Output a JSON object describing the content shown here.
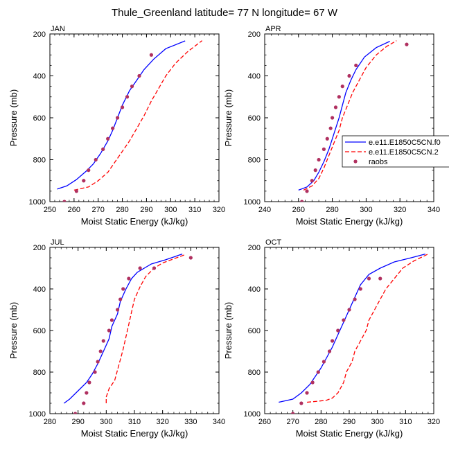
{
  "figure": {
    "title": "Thule_Greenland  latitude= 77 N longitude= 67 W"
  },
  "legend": {
    "placement": "right of APR panel (clipped at image edge)",
    "entries": [
      {
        "label": "e.e11.E1850C5CN.f0",
        "style": "solid",
        "color": "#0000ff"
      },
      {
        "label": "e.e11.E1850C5CN.2",
        "style": "dashed",
        "color": "#ff0000"
      },
      {
        "label": "raobs",
        "style": "marker",
        "color": "#b03060"
      }
    ]
  },
  "chart_data": [
    {
      "type": "line",
      "panel": "JAN",
      "xlabel": "Moist Static Energy (kJ/kg)",
      "ylabel": "Pressure (mb)",
      "xlim": [
        250,
        320
      ],
      "xticks": [
        250,
        260,
        270,
        280,
        290,
        300,
        310,
        320
      ],
      "ylim": [
        1000,
        200
      ],
      "yticks": [
        200,
        400,
        600,
        800,
        1000
      ],
      "series": [
        {
          "name": "e.e11.E1850C5CN.f0",
          "style": "solid",
          "color": "#0000ff",
          "points": [
            [
              253,
              940
            ],
            [
              257,
              925
            ],
            [
              261,
              895
            ],
            [
              265,
              855
            ],
            [
              268,
              820
            ],
            [
              271,
              770
            ],
            [
              274,
              710
            ],
            [
              276,
              660
            ],
            [
              278,
              600
            ],
            [
              280,
              540
            ],
            [
              283,
              470
            ],
            [
              286,
              420
            ],
            [
              289,
              370
            ],
            [
              293,
              320
            ],
            [
              298,
              270
            ],
            [
              306,
              233
            ]
          ]
        },
        {
          "name": "e.e11.E1850C5CN.2",
          "style": "dashed",
          "color": "#ff0000",
          "points": [
            [
              260,
              945
            ],
            [
              266,
              930
            ],
            [
              270,
              900
            ],
            [
              274,
              860
            ],
            [
              277,
              810
            ],
            [
              280,
              760
            ],
            [
              283,
              710
            ],
            [
              286,
              650
            ],
            [
              289,
              590
            ],
            [
              292,
              520
            ],
            [
              295,
              460
            ],
            [
              298,
              400
            ],
            [
              302,
              340
            ],
            [
              307,
              285
            ],
            [
              313,
              232
            ]
          ]
        },
        {
          "name": "raobs",
          "style": "marker",
          "color": "#b03060",
          "points": [
            [
              256,
              1000
            ],
            [
              261,
              950
            ],
            [
              264,
              900
            ],
            [
              266,
              850
            ],
            [
              269,
              800
            ],
            [
              272,
              750
            ],
            [
              274,
              700
            ],
            [
              276,
              650
            ],
            [
              278,
              600
            ],
            [
              280,
              550
            ],
            [
              282,
              500
            ],
            [
              284,
              450
            ],
            [
              287,
              400
            ],
            [
              292,
              300
            ]
          ]
        }
      ]
    },
    {
      "type": "line",
      "panel": "APR",
      "xlabel": "Moist Static Energy (kJ/kg)",
      "ylabel": "Pressure (mb)",
      "xlim": [
        240,
        340
      ],
      "xticks": [
        240,
        260,
        280,
        300,
        320,
        340
      ],
      "ylim": [
        1000,
        200
      ],
      "yticks": [
        200,
        400,
        600,
        800,
        1000
      ],
      "series": [
        {
          "name": "e.e11.E1850C5CN.f0",
          "style": "solid",
          "color": "#0000ff",
          "points": [
            [
              260,
              945
            ],
            [
              265,
              930
            ],
            [
              269,
              900
            ],
            [
              272,
              860
            ],
            [
              275,
              810
            ],
            [
              278,
              750
            ],
            [
              280,
              700
            ],
            [
              282,
              650
            ],
            [
              284,
              600
            ],
            [
              286,
              540
            ],
            [
              288,
              480
            ],
            [
              291,
              420
            ],
            [
              294,
              370
            ],
            [
              299,
              310
            ],
            [
              306,
              265
            ],
            [
              314,
              235
            ]
          ]
        },
        {
          "name": "e.e11.E1850C5CN.2",
          "style": "dashed",
          "color": "#ff0000",
          "points": [
            [
              263,
              945
            ],
            [
              268,
              925
            ],
            [
              272,
              890
            ],
            [
              275,
              840
            ],
            [
              278,
              780
            ],
            [
              281,
              720
            ],
            [
              284,
              660
            ],
            [
              286,
              600
            ],
            [
              289,
              540
            ],
            [
              292,
              480
            ],
            [
              296,
              420
            ],
            [
              300,
              360
            ],
            [
              306,
              300
            ],
            [
              312,
              260
            ],
            [
              318,
              232
            ]
          ]
        },
        {
          "name": "raobs",
          "style": "marker",
          "color": "#b03060",
          "points": [
            [
              262,
              1000
            ],
            [
              265,
              950
            ],
            [
              268,
              900
            ],
            [
              270,
              850
            ],
            [
              272,
              800
            ],
            [
              275,
              750
            ],
            [
              277,
              700
            ],
            [
              279,
              650
            ],
            [
              280,
              600
            ],
            [
              282,
              550
            ],
            [
              284,
              500
            ],
            [
              286,
              450
            ],
            [
              290,
              400
            ],
            [
              294,
              350
            ],
            [
              324,
              250
            ]
          ]
        }
      ]
    },
    {
      "type": "line",
      "panel": "JUL",
      "xlabel": "Moist Static Energy (kJ/kg)",
      "ylabel": "Pressure (mb)",
      "xlim": [
        280,
        340
      ],
      "xticks": [
        280,
        290,
        300,
        310,
        320,
        330,
        340
      ],
      "ylim": [
        1000,
        200
      ],
      "yticks": [
        200,
        400,
        600,
        800,
        1000
      ],
      "series": [
        {
          "name": "e.e11.E1850C5CN.f0",
          "style": "solid",
          "color": "#0000ff",
          "points": [
            [
              285,
              950
            ],
            [
              287,
              930
            ],
            [
              290,
              890
            ],
            [
              293,
              850
            ],
            [
              295,
              810
            ],
            [
              297,
              760
            ],
            [
              299,
              700
            ],
            [
              301,
              640
            ],
            [
              302,
              580
            ],
            [
              304,
              520
            ],
            [
              305,
              460
            ],
            [
              307,
              400
            ],
            [
              309,
              350
            ],
            [
              311,
              320
            ],
            [
              316,
              280
            ],
            [
              321,
              260
            ],
            [
              327,
              232
            ]
          ]
        },
        {
          "name": "e.e11.E1850C5CN.2",
          "style": "dashed",
          "color": "#ff0000",
          "points": [
            [
              300,
              950
            ],
            [
              300,
              920
            ],
            [
              301,
              880
            ],
            [
              303,
              840
            ],
            [
              304,
              790
            ],
            [
              305,
              740
            ],
            [
              306,
              690
            ],
            [
              307,
              630
            ],
            [
              308,
              570
            ],
            [
              309,
              510
            ],
            [
              310,
              450
            ],
            [
              312,
              390
            ],
            [
              314,
              340
            ],
            [
              317,
              300
            ],
            [
              320,
              275
            ],
            [
              324,
              255
            ],
            [
              328,
              235
            ]
          ]
        },
        {
          "name": "raobs",
          "style": "marker",
          "color": "#b03060",
          "points": [
            [
              289,
              1000
            ],
            [
              292,
              950
            ],
            [
              293,
              900
            ],
            [
              294,
              850
            ],
            [
              296,
              800
            ],
            [
              297,
              750
            ],
            [
              298,
              700
            ],
            [
              299,
              650
            ],
            [
              301,
              600
            ],
            [
              302,
              550
            ],
            [
              304,
              500
            ],
            [
              305,
              450
            ],
            [
              306,
              400
            ],
            [
              308,
              350
            ],
            [
              312,
              300
            ],
            [
              317,
              300
            ],
            [
              330,
              250
            ]
          ]
        }
      ]
    },
    {
      "type": "line",
      "panel": "OCT",
      "xlabel": "Moist Static Energy (kJ/kg)",
      "ylabel": "Pressure (mb)",
      "xlim": [
        260,
        320
      ],
      "xticks": [
        260,
        270,
        280,
        290,
        300,
        310,
        320
      ],
      "ylim": [
        1000,
        200
      ],
      "yticks": [
        200,
        400,
        600,
        800,
        1000
      ],
      "series": [
        {
          "name": "e.e11.E1850C5CN.f0",
          "style": "solid",
          "color": "#0000ff",
          "points": [
            [
              265,
              945
            ],
            [
              270,
              930
            ],
            [
              273,
              900
            ],
            [
              276,
              860
            ],
            [
              278,
              820
            ],
            [
              280,
              780
            ],
            [
              282,
              730
            ],
            [
              284,
              680
            ],
            [
              286,
              620
            ],
            [
              288,
              560
            ],
            [
              290,
              500
            ],
            [
              292,
              440
            ],
            [
              294,
              380
            ],
            [
              297,
              330
            ],
            [
              301,
              300
            ],
            [
              306,
              270
            ],
            [
              312,
              250
            ],
            [
              317,
              232
            ]
          ]
        },
        {
          "name": "e.e11.E1850C5CN.2",
          "style": "dashed",
          "color": "#ff0000",
          "points": [
            [
              275,
              945
            ],
            [
              279,
              940
            ],
            [
              282,
              935
            ],
            [
              284,
              925
            ],
            [
              286,
              900
            ],
            [
              288,
              850
            ],
            [
              289,
              800
            ],
            [
              291,
              750
            ],
            [
              292,
              700
            ],
            [
              294,
              650
            ],
            [
              296,
              600
            ],
            [
              297,
              550
            ],
            [
              299,
              500
            ],
            [
              301,
              450
            ],
            [
              303,
              400
            ],
            [
              306,
              350
            ],
            [
              309,
              300
            ],
            [
              313,
              265
            ],
            [
              318,
              232
            ]
          ]
        },
        {
          "name": "raobs",
          "style": "marker",
          "color": "#b03060",
          "points": [
            [
              270,
              1000
            ],
            [
              273,
              950
            ],
            [
              275,
              900
            ],
            [
              277,
              850
            ],
            [
              279,
              800
            ],
            [
              281,
              750
            ],
            [
              283,
              700
            ],
            [
              284,
              650
            ],
            [
              286,
              600
            ],
            [
              288,
              550
            ],
            [
              290,
              500
            ],
            [
              292,
              450
            ],
            [
              294,
              400
            ],
            [
              297,
              350
            ],
            [
              301,
              350
            ]
          ]
        }
      ]
    }
  ]
}
